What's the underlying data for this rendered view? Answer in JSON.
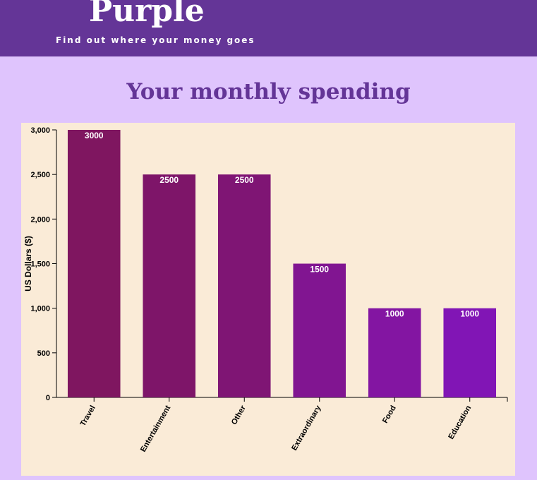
{
  "header": {
    "brand": "Purple",
    "tagline": "Find out where your money goes"
  },
  "page_title": "Your monthly spending",
  "colors": {
    "header_bg": "#643597",
    "page_bg": "#dfc4fd",
    "panel_bg": "#faebd7",
    "title": "#643597"
  },
  "chart_data": {
    "type": "bar",
    "categories": [
      "Travel",
      "Entertainment",
      "Other",
      "Extraordinary",
      "Food",
      "Education"
    ],
    "values": [
      3000,
      2500,
      2500,
      1500,
      1000,
      1000
    ],
    "bar_colors": [
      "#7f1660",
      "#7e1569",
      "#7f1574",
      "#811591",
      "#8315a2",
      "#8115b5"
    ],
    "ylabel": "US Dollars ($)",
    "ylim": [
      0,
      3000
    ],
    "yticks": [
      0,
      500,
      1000,
      1500,
      2000,
      2500,
      3000
    ],
    "ytick_labels": [
      "0",
      "500",
      "1,000",
      "1,500",
      "2,000",
      "2,500",
      "3,000"
    ],
    "grid": false
  }
}
